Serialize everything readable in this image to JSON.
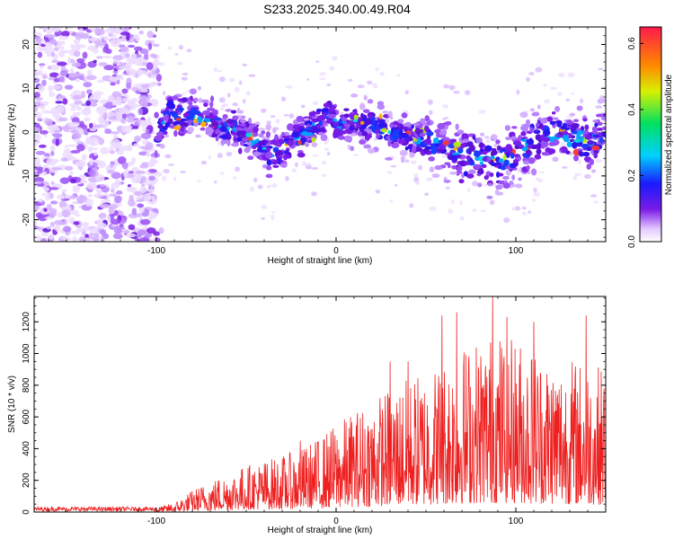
{
  "title": "S233.2025.340.00.49.R04",
  "colors": {
    "snr_line": "#ee2020",
    "axis": "#000000"
  },
  "chart_data": [
    {
      "type": "heatmap",
      "xlabel": "Height of straight line (km)",
      "ylabel": "Frequency (Hz)",
      "xlim": [
        -168,
        150
      ],
      "ylim": [
        -25,
        24
      ],
      "xticks": [
        -100,
        0,
        100
      ],
      "yticks": [
        -20,
        -10,
        0,
        10,
        20
      ],
      "ridge": [
        {
          "x": -100,
          "y": 0.0
        },
        {
          "x": -92,
          "y": 4.5
        },
        {
          "x": -80,
          "y": 3.5
        },
        {
          "x": -70,
          "y": 2.5
        },
        {
          "x": -55,
          "y": 0.5
        },
        {
          "x": -45,
          "y": -2.0
        },
        {
          "x": -38,
          "y": -5.0
        },
        {
          "x": -30,
          "y": -4.0
        },
        {
          "x": -20,
          "y": -1.0
        },
        {
          "x": -10,
          "y": 2.0
        },
        {
          "x": -3,
          "y": 5.0
        },
        {
          "x": 0,
          "y": 1.0
        },
        {
          "x": 10,
          "y": 2.5
        },
        {
          "x": 20,
          "y": 2.0
        },
        {
          "x": 30,
          "y": 0.0
        },
        {
          "x": 40,
          "y": -1.0
        },
        {
          "x": 50,
          "y": -2.0
        },
        {
          "x": 60,
          "y": -3.5
        },
        {
          "x": 70,
          "y": -5.0
        },
        {
          "x": 80,
          "y": -6.0
        },
        {
          "x": 90,
          "y": -7.0
        },
        {
          "x": 100,
          "y": -4.5
        },
        {
          "x": 110,
          "y": -2.0
        },
        {
          "x": 120,
          "y": -1.0
        },
        {
          "x": 130,
          "y": -1.5
        },
        {
          "x": 140,
          "y": -2.0
        },
        {
          "x": 148,
          "y": -1.0
        }
      ],
      "colorbar": {
        "label": "Normalized spectral amplitude",
        "range": [
          0,
          0.65
        ],
        "ticks": [
          "0.0",
          "0.2",
          "0.4",
          "0.6"
        ],
        "tick_values": [
          0.0,
          0.2,
          0.4,
          0.6
        ]
      }
    },
    {
      "type": "line",
      "xlabel": "Height of straight line (km)",
      "ylabel": "SNR (10 * v/v)",
      "xlim": [
        -168,
        150
      ],
      "ylim": [
        0,
        1360
      ],
      "xticks": [
        -100,
        0,
        100
      ],
      "yticks": [
        0,
        200,
        400,
        600,
        800,
        1000,
        1200
      ],
      "envelope": [
        {
          "x": -168,
          "y": 30
        },
        {
          "x": -100,
          "y": 30
        },
        {
          "x": -90,
          "y": 60
        },
        {
          "x": -80,
          "y": 140
        },
        {
          "x": -70,
          "y": 200
        },
        {
          "x": -60,
          "y": 250
        },
        {
          "x": -50,
          "y": 300
        },
        {
          "x": -40,
          "y": 330
        },
        {
          "x": -30,
          "y": 360
        },
        {
          "x": -20,
          "y": 400
        },
        {
          "x": -10,
          "y": 470
        },
        {
          "x": 0,
          "y": 560
        },
        {
          "x": 10,
          "y": 640
        },
        {
          "x": 20,
          "y": 720
        },
        {
          "x": 30,
          "y": 790
        },
        {
          "x": 40,
          "y": 850
        },
        {
          "x": 50,
          "y": 900
        },
        {
          "x": 60,
          "y": 980
        },
        {
          "x": 70,
          "y": 1060
        },
        {
          "x": 80,
          "y": 1120
        },
        {
          "x": 90,
          "y": 1150
        },
        {
          "x": 100,
          "y": 1120
        },
        {
          "x": 110,
          "y": 1060
        },
        {
          "x": 120,
          "y": 1000
        },
        {
          "x": 130,
          "y": 980
        },
        {
          "x": 140,
          "y": 960
        },
        {
          "x": 150,
          "y": 920
        }
      ],
      "peaks": [
        {
          "x": -20,
          "y": 450
        },
        {
          "x": 30,
          "y": 950
        },
        {
          "x": 40,
          "y": 950
        },
        {
          "x": 59,
          "y": 1240
        },
        {
          "x": 67,
          "y": 1260
        },
        {
          "x": 87,
          "y": 1360
        },
        {
          "x": 95,
          "y": 1230
        },
        {
          "x": 110,
          "y": 1200
        },
        {
          "x": 139,
          "y": 1240
        }
      ]
    }
  ]
}
